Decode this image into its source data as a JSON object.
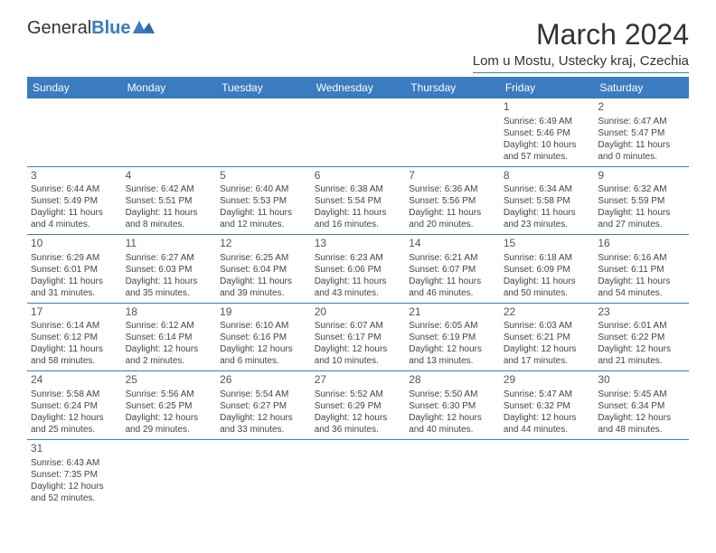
{
  "logo": {
    "text_general": "General",
    "text_blue": "Blue"
  },
  "header": {
    "month_title": "March 2024",
    "location": "Lom u Mostu, Ustecky kraj, Czechia"
  },
  "colors": {
    "header_bg": "#3b7bbf",
    "header_text": "#ffffff",
    "rule": "#3b7bbf",
    "body_text": "#444444",
    "daynum": "#555555"
  },
  "dayNames": [
    "Sunday",
    "Monday",
    "Tuesday",
    "Wednesday",
    "Thursday",
    "Friday",
    "Saturday"
  ],
  "weeks": [
    [
      null,
      null,
      null,
      null,
      null,
      {
        "n": "1",
        "sr": "Sunrise: 6:49 AM",
        "ss": "Sunset: 5:46 PM",
        "dl": "Daylight: 10 hours and 57 minutes."
      },
      {
        "n": "2",
        "sr": "Sunrise: 6:47 AM",
        "ss": "Sunset: 5:47 PM",
        "dl": "Daylight: 11 hours and 0 minutes."
      }
    ],
    [
      {
        "n": "3",
        "sr": "Sunrise: 6:44 AM",
        "ss": "Sunset: 5:49 PM",
        "dl": "Daylight: 11 hours and 4 minutes."
      },
      {
        "n": "4",
        "sr": "Sunrise: 6:42 AM",
        "ss": "Sunset: 5:51 PM",
        "dl": "Daylight: 11 hours and 8 minutes."
      },
      {
        "n": "5",
        "sr": "Sunrise: 6:40 AM",
        "ss": "Sunset: 5:53 PM",
        "dl": "Daylight: 11 hours and 12 minutes."
      },
      {
        "n": "6",
        "sr": "Sunrise: 6:38 AM",
        "ss": "Sunset: 5:54 PM",
        "dl": "Daylight: 11 hours and 16 minutes."
      },
      {
        "n": "7",
        "sr": "Sunrise: 6:36 AM",
        "ss": "Sunset: 5:56 PM",
        "dl": "Daylight: 11 hours and 20 minutes."
      },
      {
        "n": "8",
        "sr": "Sunrise: 6:34 AM",
        "ss": "Sunset: 5:58 PM",
        "dl": "Daylight: 11 hours and 23 minutes."
      },
      {
        "n": "9",
        "sr": "Sunrise: 6:32 AM",
        "ss": "Sunset: 5:59 PM",
        "dl": "Daylight: 11 hours and 27 minutes."
      }
    ],
    [
      {
        "n": "10",
        "sr": "Sunrise: 6:29 AM",
        "ss": "Sunset: 6:01 PM",
        "dl": "Daylight: 11 hours and 31 minutes."
      },
      {
        "n": "11",
        "sr": "Sunrise: 6:27 AM",
        "ss": "Sunset: 6:03 PM",
        "dl": "Daylight: 11 hours and 35 minutes."
      },
      {
        "n": "12",
        "sr": "Sunrise: 6:25 AM",
        "ss": "Sunset: 6:04 PM",
        "dl": "Daylight: 11 hours and 39 minutes."
      },
      {
        "n": "13",
        "sr": "Sunrise: 6:23 AM",
        "ss": "Sunset: 6:06 PM",
        "dl": "Daylight: 11 hours and 43 minutes."
      },
      {
        "n": "14",
        "sr": "Sunrise: 6:21 AM",
        "ss": "Sunset: 6:07 PM",
        "dl": "Daylight: 11 hours and 46 minutes."
      },
      {
        "n": "15",
        "sr": "Sunrise: 6:18 AM",
        "ss": "Sunset: 6:09 PM",
        "dl": "Daylight: 11 hours and 50 minutes."
      },
      {
        "n": "16",
        "sr": "Sunrise: 6:16 AM",
        "ss": "Sunset: 6:11 PM",
        "dl": "Daylight: 11 hours and 54 minutes."
      }
    ],
    [
      {
        "n": "17",
        "sr": "Sunrise: 6:14 AM",
        "ss": "Sunset: 6:12 PM",
        "dl": "Daylight: 11 hours and 58 minutes."
      },
      {
        "n": "18",
        "sr": "Sunrise: 6:12 AM",
        "ss": "Sunset: 6:14 PM",
        "dl": "Daylight: 12 hours and 2 minutes."
      },
      {
        "n": "19",
        "sr": "Sunrise: 6:10 AM",
        "ss": "Sunset: 6:16 PM",
        "dl": "Daylight: 12 hours and 6 minutes."
      },
      {
        "n": "20",
        "sr": "Sunrise: 6:07 AM",
        "ss": "Sunset: 6:17 PM",
        "dl": "Daylight: 12 hours and 10 minutes."
      },
      {
        "n": "21",
        "sr": "Sunrise: 6:05 AM",
        "ss": "Sunset: 6:19 PM",
        "dl": "Daylight: 12 hours and 13 minutes."
      },
      {
        "n": "22",
        "sr": "Sunrise: 6:03 AM",
        "ss": "Sunset: 6:21 PM",
        "dl": "Daylight: 12 hours and 17 minutes."
      },
      {
        "n": "23",
        "sr": "Sunrise: 6:01 AM",
        "ss": "Sunset: 6:22 PM",
        "dl": "Daylight: 12 hours and 21 minutes."
      }
    ],
    [
      {
        "n": "24",
        "sr": "Sunrise: 5:58 AM",
        "ss": "Sunset: 6:24 PM",
        "dl": "Daylight: 12 hours and 25 minutes."
      },
      {
        "n": "25",
        "sr": "Sunrise: 5:56 AM",
        "ss": "Sunset: 6:25 PM",
        "dl": "Daylight: 12 hours and 29 minutes."
      },
      {
        "n": "26",
        "sr": "Sunrise: 5:54 AM",
        "ss": "Sunset: 6:27 PM",
        "dl": "Daylight: 12 hours and 33 minutes."
      },
      {
        "n": "27",
        "sr": "Sunrise: 5:52 AM",
        "ss": "Sunset: 6:29 PM",
        "dl": "Daylight: 12 hours and 36 minutes."
      },
      {
        "n": "28",
        "sr": "Sunrise: 5:50 AM",
        "ss": "Sunset: 6:30 PM",
        "dl": "Daylight: 12 hours and 40 minutes."
      },
      {
        "n": "29",
        "sr": "Sunrise: 5:47 AM",
        "ss": "Sunset: 6:32 PM",
        "dl": "Daylight: 12 hours and 44 minutes."
      },
      {
        "n": "30",
        "sr": "Sunrise: 5:45 AM",
        "ss": "Sunset: 6:34 PM",
        "dl": "Daylight: 12 hours and 48 minutes."
      }
    ],
    [
      {
        "n": "31",
        "sr": "Sunrise: 6:43 AM",
        "ss": "Sunset: 7:35 PM",
        "dl": "Daylight: 12 hours and 52 minutes."
      },
      null,
      null,
      null,
      null,
      null,
      null
    ]
  ]
}
